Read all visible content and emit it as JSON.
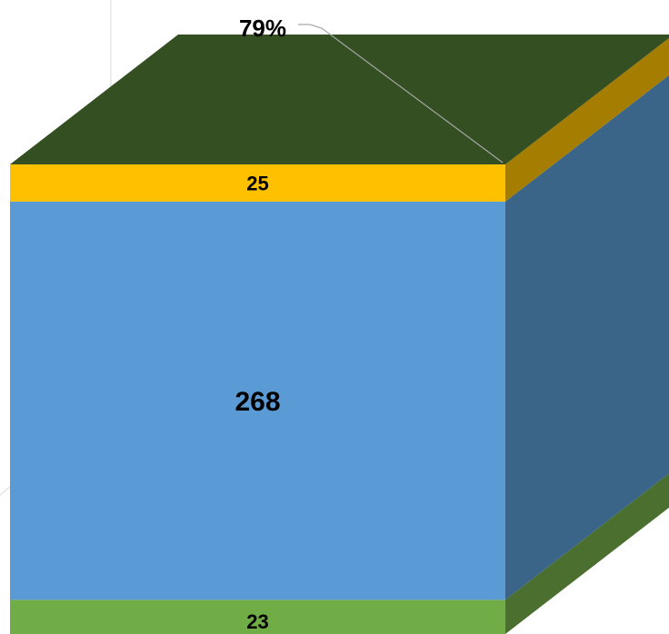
{
  "chart_data": {
    "type": "bar",
    "style": "3d-stacked-column",
    "categories": [
      ""
    ],
    "series": [
      {
        "values": [
          23
        ],
        "color": "#70AD47",
        "label": "23"
      },
      {
        "values": [
          268
        ],
        "color": "#5B9BD5",
        "label": "268"
      },
      {
        "values": [
          25
        ],
        "color": "#FFC000",
        "label": "25"
      }
    ],
    "annotations": [
      {
        "text": "79%"
      }
    ],
    "colors": {
      "top_face": "#344F22",
      "green_side": "#4A6F2F",
      "blue_side": "#3A6589",
      "gold_side": "#A57D00",
      "gridline": "#D9D9D9",
      "leader_line": "#A6A6A6"
    },
    "title": "",
    "xlabel": "",
    "ylabel": "",
    "grid": true,
    "legend": "none"
  }
}
